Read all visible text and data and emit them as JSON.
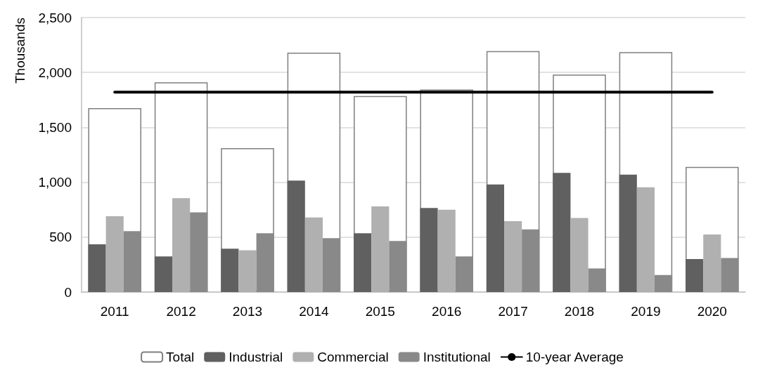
{
  "chart_data": {
    "type": "bar",
    "ylabel": "Thousands",
    "categories": [
      "2011",
      "2012",
      "2013",
      "2014",
      "2015",
      "2016",
      "2017",
      "2018",
      "2019",
      "2020"
    ],
    "series": [
      {
        "name": "Total",
        "color": "#ffffff",
        "values": [
          1675,
          1910,
          1310,
          2180,
          1785,
          1845,
          2195,
          1980,
          2185,
          1140
        ]
      },
      {
        "name": "Industrial",
        "color": "#606060",
        "values": [
          435,
          325,
          395,
          1015,
          535,
          765,
          980,
          1085,
          1070,
          300
        ]
      },
      {
        "name": "Commercial",
        "color": "#b0b0b0",
        "values": [
          690,
          855,
          380,
          680,
          780,
          750,
          645,
          675,
          955,
          525
        ]
      },
      {
        "name": "Institutional",
        "color": "#898989",
        "values": [
          555,
          725,
          535,
          490,
          465,
          325,
          570,
          215,
          155,
          310
        ]
      },
      {
        "name": "10-year Average",
        "type": "line",
        "color": "#000000",
        "values": [
          1820,
          1820,
          1820,
          1820,
          1820,
          1820,
          1820,
          1820,
          1820,
          1820
        ]
      }
    ],
    "ylim": [
      0,
      2500
    ],
    "yticks": [
      0,
      500,
      {
        "value": 1000,
        "label": "1,000"
      },
      {
        "value": 1500,
        "label": "1,500"
      },
      {
        "value": 2000,
        "label": "2,000"
      },
      {
        "value": 2500,
        "label": "2,500"
      }
    ],
    "grid": "y",
    "legend": "bottom",
    "marker": "none"
  }
}
